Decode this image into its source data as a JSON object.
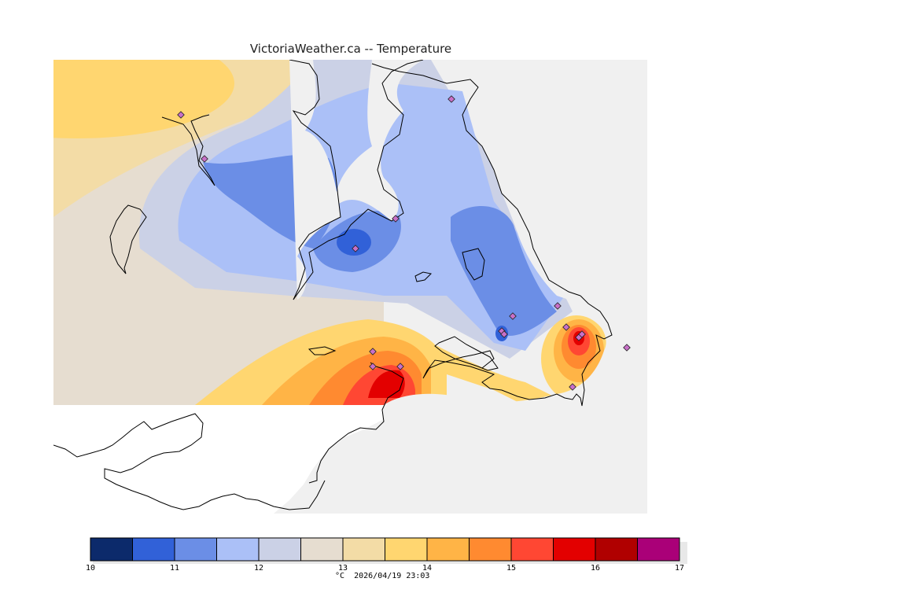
{
  "title": "VictoriaWeather.ca -- Temperature",
  "caption": {
    "unit": "°C",
    "timestamp": "2026/04/19 23:03"
  },
  "colors": {
    "background_land": "#f0f0f0",
    "coast": "#000000",
    "station_marker": "#c870c8"
  },
  "legend": {
    "min": 10,
    "max": 17,
    "step": 0.5,
    "tick_labels": [
      "10",
      "11",
      "12",
      "13",
      "14",
      "15",
      "16",
      "17"
    ],
    "bins": [
      {
        "from": 10.0,
        "to": 10.5,
        "color": "#0c2a6b"
      },
      {
        "from": 10.5,
        "to": 11.0,
        "color": "#3161d8"
      },
      {
        "from": 11.0,
        "to": 11.5,
        "color": "#6b8ee6"
      },
      {
        "from": 11.5,
        "to": 12.0,
        "color": "#abc0f7"
      },
      {
        "from": 12.0,
        "to": 12.5,
        "color": "#cbd1e6"
      },
      {
        "from": 12.5,
        "to": 13.0,
        "color": "#e6ddd0"
      },
      {
        "from": 13.0,
        "to": 13.5,
        "color": "#f3dca6"
      },
      {
        "from": 13.5,
        "to": 14.0,
        "color": "#ffd670"
      },
      {
        "from": 14.0,
        "to": 14.5,
        "color": "#ffb446"
      },
      {
        "from": 14.5,
        "to": 15.0,
        "color": "#ff8a30"
      },
      {
        "from": 15.0,
        "to": 15.5,
        "color": "#ff4733"
      },
      {
        "from": 15.5,
        "to": 16.0,
        "color": "#e30000"
      },
      {
        "from": 16.0,
        "to": 16.5,
        "color": "#b00000"
      },
      {
        "from": 16.5,
        "to": 17.0,
        "color": "#aa0078"
      }
    ]
  }
}
